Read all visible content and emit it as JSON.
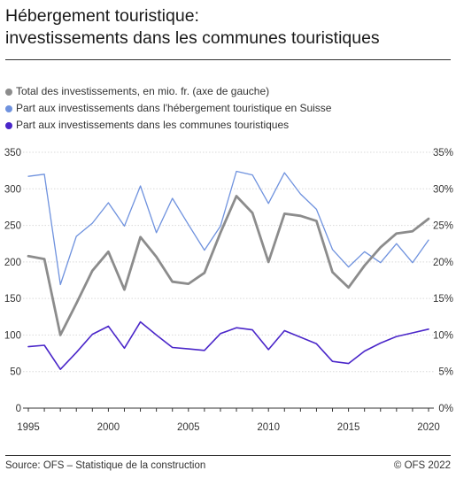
{
  "header": {
    "title_line1": "Hébergement touristique:",
    "title_line2": "investissements dans les communes touristiques"
  },
  "footer": {
    "source": "Source: OFS – Statistique de la construction",
    "copyright": "© OFS 2022"
  },
  "chart_data": {
    "type": "line",
    "x": [
      1995,
      1996,
      1997,
      1998,
      1999,
      2000,
      2001,
      2002,
      2003,
      2004,
      2005,
      2006,
      2007,
      2008,
      2009,
      2010,
      2011,
      2012,
      2013,
      2014,
      2015,
      2016,
      2017,
      2018,
      2019,
      2020
    ],
    "x_ticks": [
      "1995",
      "2000",
      "2005",
      "2010",
      "2015",
      "2020"
    ],
    "y_left_ticks": [
      "0",
      "50",
      "100",
      "150",
      "200",
      "250",
      "300",
      "350"
    ],
    "y_right_ticks": [
      "0%",
      "5%",
      "10%",
      "15%",
      "20%",
      "25%",
      "30%",
      "35%"
    ],
    "ylim_left": [
      0,
      350
    ],
    "ylim_right": [
      0,
      35
    ],
    "grid": true,
    "legend_position": "top",
    "series": [
      {
        "name": "Total des investissements, en mio. fr. (axe de gauche)",
        "axis": "left",
        "color": "#8c8c8c",
        "values": [
          208,
          204,
          100,
          143,
          188,
          214,
          162,
          234,
          207,
          173,
          170,
          185,
          240,
          290,
          267,
          200,
          266,
          263,
          256,
          186,
          165,
          195,
          220,
          239,
          242,
          259
        ]
      },
      {
        "name": "Part aux investissements dans l'hébergement touristique en Suisse",
        "axis": "right",
        "color": "#6f92de",
        "values": [
          31.7,
          32.0,
          16.9,
          23.5,
          25.3,
          28.1,
          24.9,
          30.4,
          24.0,
          28.7,
          25.1,
          21.6,
          24.9,
          32.4,
          31.9,
          28.0,
          32.2,
          29.3,
          27.2,
          21.7,
          19.3,
          21.4,
          19.9,
          22.5,
          19.9,
          23.0
        ]
      },
      {
        "name": "Part aux investissements dans les communes touristiques",
        "axis": "right",
        "color": "#4a26c9",
        "values": [
          8.4,
          8.6,
          5.3,
          7.6,
          10.1,
          11.2,
          8.2,
          11.8,
          10.0,
          8.3,
          8.1,
          7.9,
          10.2,
          11.0,
          10.7,
          8.0,
          10.6,
          9.7,
          8.8,
          6.4,
          6.1,
          7.8,
          8.9,
          9.8,
          10.3,
          10.8
        ]
      }
    ]
  }
}
